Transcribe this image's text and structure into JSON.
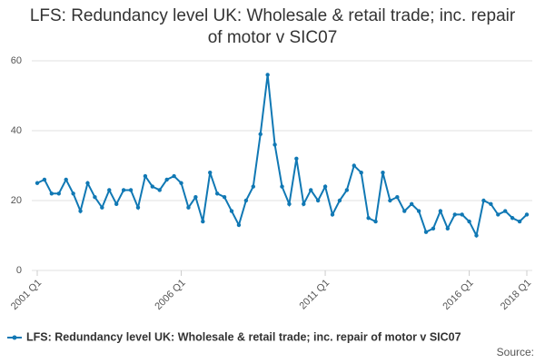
{
  "chart_data": {
    "type": "line",
    "title": "LFS: Redundancy level UK: Wholesale & retail trade; inc. repair of motor v SIC07",
    "source_label": "Source:",
    "categories": [
      "2001 Q1",
      null,
      null,
      null,
      null,
      null,
      null,
      null,
      null,
      null,
      null,
      null,
      null,
      null,
      null,
      null,
      null,
      null,
      null,
      null,
      "2006 Q1",
      null,
      null,
      null,
      null,
      null,
      null,
      null,
      null,
      null,
      null,
      null,
      null,
      null,
      null,
      null,
      null,
      null,
      null,
      null,
      "2011 Q1",
      null,
      null,
      null,
      null,
      null,
      null,
      null,
      null,
      null,
      null,
      null,
      null,
      null,
      null,
      null,
      null,
      null,
      null,
      null,
      "2016 Q1",
      null,
      null,
      null,
      null,
      null,
      null,
      null,
      "2018 Q1"
    ],
    "series": [
      {
        "name": "LFS: Redundancy level UK: Wholesale & retail trade; inc. repair of motor v SIC07",
        "color": "#1078b4",
        "values": [
          25,
          26,
          22,
          22,
          26,
          22,
          17,
          25,
          21,
          18,
          23,
          19,
          23,
          23,
          18,
          27,
          24,
          23,
          26,
          27,
          25,
          18,
          21,
          14,
          28,
          22,
          21,
          17,
          13,
          20,
          24,
          39,
          56,
          36,
          24,
          19,
          32,
          19,
          23,
          20,
          24,
          16,
          20,
          23,
          30,
          28,
          15,
          14,
          28,
          20,
          21,
          17,
          19,
          17,
          11,
          12,
          17,
          12,
          16,
          16,
          14,
          10,
          20,
          19,
          16,
          17,
          15,
          14,
          16
        ]
      }
    ],
    "ylim": [
      0,
      60
    ],
    "yticks": [
      0,
      20,
      40,
      60
    ],
    "grid": true,
    "legend": "bottom"
  }
}
